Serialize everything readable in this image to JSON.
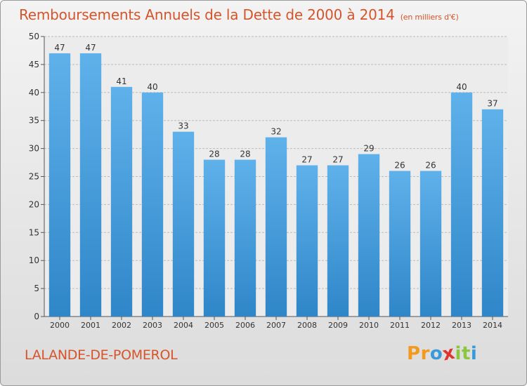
{
  "chart_data": {
    "type": "bar",
    "title": "Remboursements Annuels de la Dette de 2000 à 2014",
    "unit_label": "(en milliers d'€)",
    "categories": [
      "2000",
      "2001",
      "2002",
      "2003",
      "2004",
      "2005",
      "2006",
      "2007",
      "2008",
      "2009",
      "2010",
      "2011",
      "2012",
      "2013",
      "2014"
    ],
    "values": [
      47,
      47,
      41,
      40,
      33,
      28,
      28,
      32,
      27,
      27,
      29,
      26,
      26,
      40,
      37
    ],
    "ylim": [
      0,
      50
    ],
    "yticks": [
      0,
      5,
      10,
      15,
      20,
      25,
      30,
      35,
      40,
      45,
      50
    ],
    "xlabel": "",
    "ylabel": "",
    "grid": true,
    "colors": {
      "bar_light": "#5fb1ea",
      "bar_dark": "#2f86c8",
      "title": "#d5542a"
    }
  },
  "footer": {
    "commune": "LALANDE-DE-POMEROL",
    "logo_letters": [
      "P",
      "r",
      "o",
      "x",
      "i",
      "t",
      "i"
    ],
    "logo_colors": [
      "#f39a1e",
      "#f39a1e",
      "#3a9ad9",
      "#e0322e",
      "#8cc63f",
      "#8cc63f",
      "#3a9ad9"
    ]
  }
}
